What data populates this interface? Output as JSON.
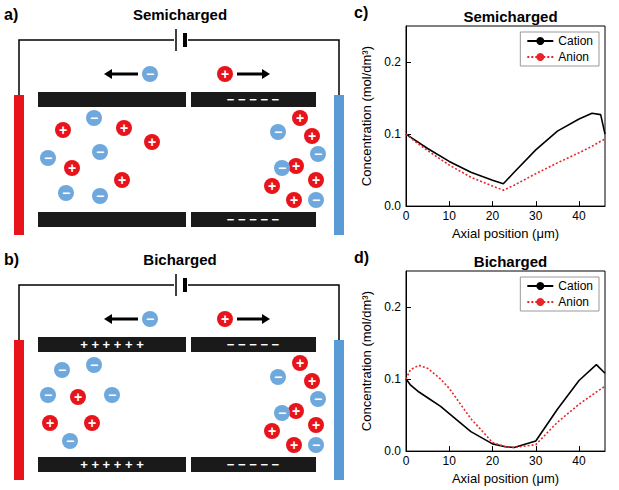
{
  "diagrams": [
    {
      "panel": "a)",
      "title": "Semicharged",
      "cation_symbol": "+",
      "anion_symbol": "−",
      "right_plate_charges": "− − − − −"
    },
    {
      "panel": "b)",
      "title": "Bicharged",
      "cation_symbol": "+",
      "anion_symbol": "−",
      "left_plate_charges": "+ + + + + +",
      "right_plate_charges": "− − − − −"
    }
  ],
  "chart_data": [
    {
      "type": "line",
      "panel": "c)",
      "title": "Semicharged",
      "x_label": "Axial position (μm)",
      "y_label": "Concentration (mol/dm³)",
      "x": [
        0,
        2,
        5,
        10,
        15,
        20,
        22.5,
        25,
        30,
        35,
        40,
        43,
        45,
        46
      ],
      "series": [
        {
          "name": "Cation",
          "color": "#000000",
          "line_style": "solid",
          "values": [
            0.1,
            0.092,
            0.08,
            0.062,
            0.047,
            0.036,
            0.031,
            0.047,
            0.078,
            0.104,
            0.121,
            0.129,
            0.127,
            0.1
          ]
        },
        {
          "name": "Anion",
          "color": "#e8262a",
          "line_style": "dotted",
          "values": [
            0.1,
            0.09,
            0.077,
            0.057,
            0.04,
            0.028,
            0.022,
            0.029,
            0.045,
            0.06,
            0.074,
            0.083,
            0.09,
            0.093
          ]
        }
      ],
      "xlim": [
        0,
        46
      ],
      "xticks": [
        0,
        10,
        20,
        30,
        40
      ],
      "ylim": [
        0,
        0.25
      ],
      "yticks": [
        {
          "value": 0,
          "label": "0.0"
        },
        0.1,
        0.2
      ],
      "grid": false,
      "legend": "upper right"
    },
    {
      "type": "line",
      "panel": "d)",
      "title": "Bicharged",
      "x_label": "Axial position (μm)",
      "y_label": "Concentration (mol/dm³)",
      "x": [
        0,
        1,
        3,
        5,
        8,
        10,
        15,
        20,
        23,
        25,
        30,
        35,
        40,
        44,
        46
      ],
      "series": [
        {
          "name": "Cation",
          "color": "#000000",
          "line_style": "solid",
          "values": [
            0.1,
            0.092,
            0.082,
            0.074,
            0.062,
            0.052,
            0.027,
            0.01,
            0.006,
            0.005,
            0.014,
            0.058,
            0.098,
            0.12,
            0.108
          ]
        },
        {
          "name": "Anion",
          "color": "#e8262a",
          "line_style": "dotted",
          "values": [
            0.1,
            0.113,
            0.119,
            0.115,
            0.1,
            0.087,
            0.045,
            0.012,
            0.006,
            0.005,
            0.009,
            0.04,
            0.065,
            0.082,
            0.09
          ]
        }
      ],
      "xlim": [
        0,
        46
      ],
      "xticks": [
        0,
        10,
        20,
        30,
        40
      ],
      "ylim": [
        0,
        0.25
      ],
      "yticks": [
        {
          "value": 0,
          "label": "0.0"
        },
        0.1,
        0.2
      ],
      "grid": false,
      "legend": "upper right"
    }
  ]
}
